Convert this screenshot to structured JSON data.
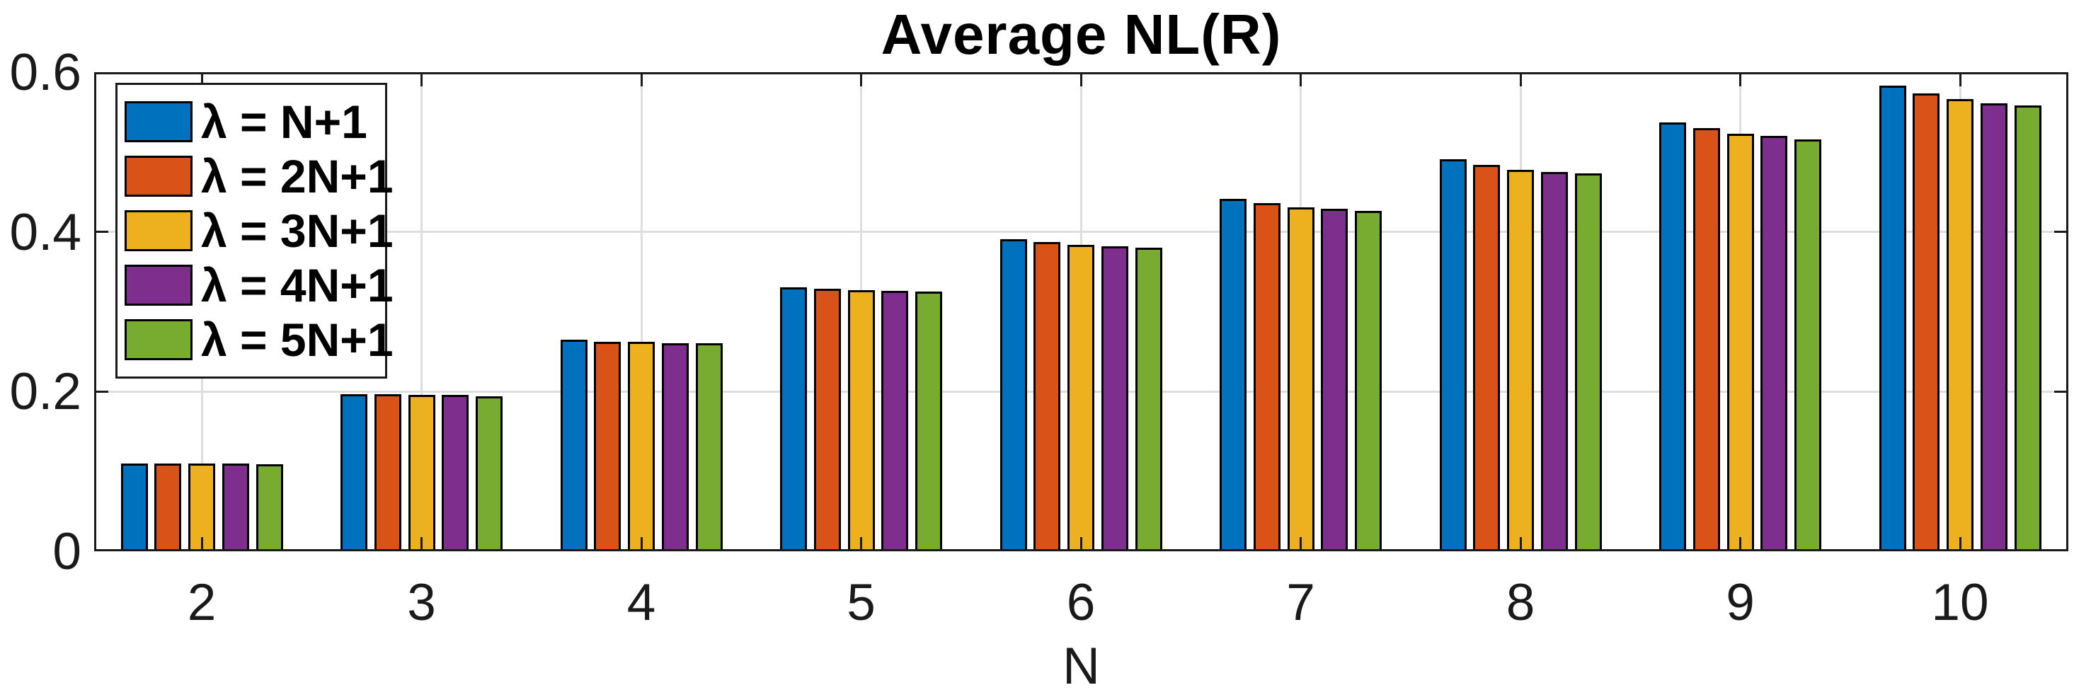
{
  "title": "Average NL(R)",
  "xlabel": "N",
  "axis": {
    "y_tick_labels": [
      "0",
      "0.2",
      "0.4",
      "0.6"
    ],
    "x_tick_labels": [
      "2",
      "3",
      "4",
      "5",
      "6",
      "7",
      "8",
      "9",
      "10"
    ]
  },
  "colors": {
    "axis": "#1a1a1a",
    "grid": "#dedede",
    "bar_edge": "#000000",
    "background": "#ffffff"
  },
  "legend": {
    "entries": [
      "λ = N+1",
      "λ = 2N+1",
      "λ = 3N+1",
      "λ = 4N+1",
      "λ = 5N+1"
    ],
    "position": "top-left"
  },
  "chart_data": {
    "type": "bar",
    "title": "Average NL(R)",
    "xlabel": "N",
    "ylabel": "",
    "categories": [
      2,
      3,
      4,
      5,
      6,
      7,
      8,
      9,
      10
    ],
    "ylim": [
      0,
      0.6
    ],
    "yticks": [
      0,
      0.2,
      0.4,
      0.6
    ],
    "grid": true,
    "legend_position": "top-left",
    "series": [
      {
        "name": "λ = N+1",
        "color": "#0072BD",
        "values": [
          0.11,
          0.197,
          0.265,
          0.331,
          0.391,
          0.441,
          0.491,
          0.537,
          0.583
        ]
      },
      {
        "name": "λ = 2N+1",
        "color": "#D95319",
        "values": [
          0.11,
          0.197,
          0.262,
          0.329,
          0.387,
          0.436,
          0.484,
          0.53,
          0.573
        ]
      },
      {
        "name": "λ = 3N+1",
        "color": "#EDB120",
        "values": [
          0.11,
          0.196,
          0.262,
          0.327,
          0.384,
          0.431,
          0.478,
          0.523,
          0.566
        ]
      },
      {
        "name": "λ = 4N+1",
        "color": "#7E2F8E",
        "values": [
          0.11,
          0.196,
          0.261,
          0.326,
          0.382,
          0.429,
          0.475,
          0.52,
          0.561
        ]
      },
      {
        "name": "λ = 5N+1",
        "color": "#77AC30",
        "values": [
          0.109,
          0.194,
          0.261,
          0.325,
          0.38,
          0.426,
          0.473,
          0.516,
          0.558
        ]
      }
    ]
  }
}
